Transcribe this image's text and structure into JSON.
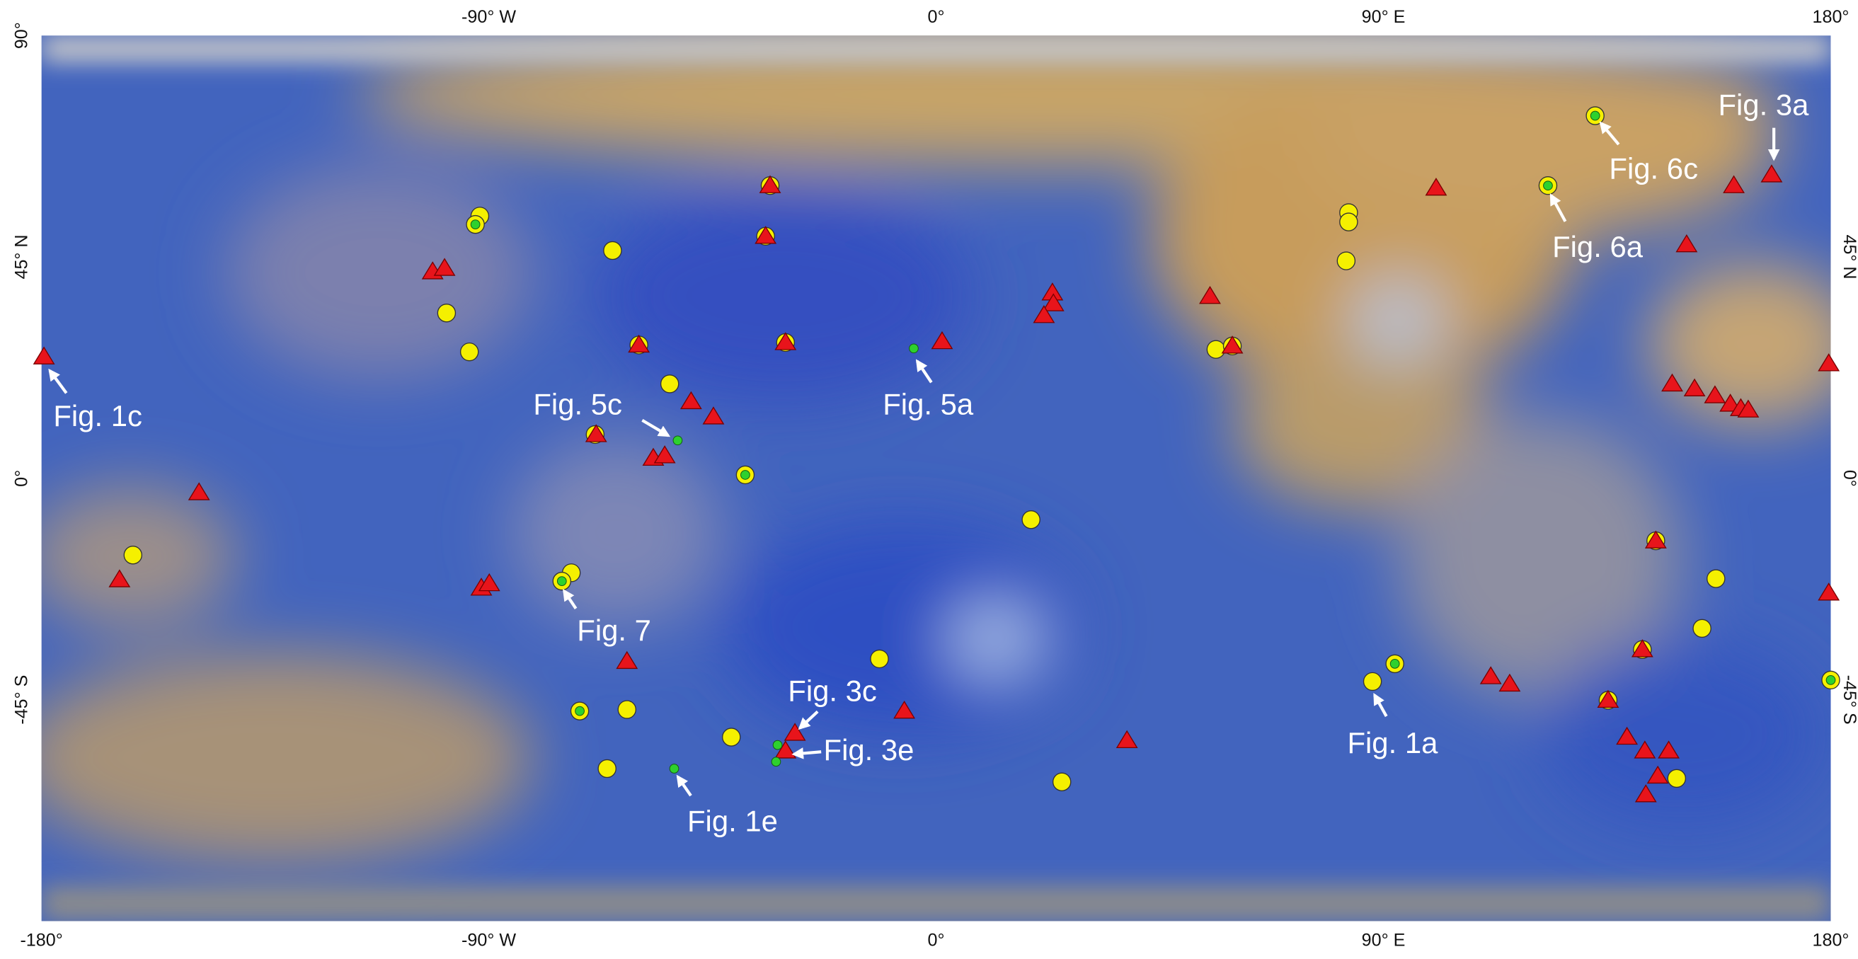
{
  "map": {
    "lonlim": [
      -180,
      180
    ],
    "latlim": [
      -90,
      90
    ],
    "top_ticks": [
      {
        "value": -90,
        "label": "-90° W"
      },
      {
        "value": 0,
        "label": "0°"
      },
      {
        "value": 90,
        "label": "90° E"
      },
      {
        "value": 180,
        "label": "180°"
      }
    ],
    "bottom_ticks": [
      {
        "value": -180,
        "label": "-180°"
      },
      {
        "value": -90,
        "label": "-90° W"
      },
      {
        "value": 0,
        "label": "0°"
      },
      {
        "value": 90,
        "label": "90° E"
      },
      {
        "value": 180,
        "label": "180°"
      }
    ],
    "left_ticks": [
      {
        "value": 90,
        "label": "90°"
      },
      {
        "value": 45,
        "label": "45° N"
      },
      {
        "value": 0,
        "label": "0°"
      },
      {
        "value": -45,
        "label": "-45° S"
      }
    ],
    "right_ticks": [
      {
        "value": 45,
        "label": "45° N"
      },
      {
        "value": 0,
        "label": "0°"
      },
      {
        "value": -45,
        "label": "-45° S"
      }
    ],
    "markers": {
      "yellow": {
        "color": "#f5f000",
        "points": [
          [
            -91.8,
            53.3
          ],
          [
            -92.7,
            51.6
          ],
          [
            -65.1,
            46.3
          ],
          [
            -98.5,
            33.6
          ],
          [
            -93.9,
            25.7
          ],
          [
            -53.6,
            19.2
          ],
          [
            -68.6,
            8.9
          ],
          [
            -38.4,
            0.7
          ],
          [
            -33.4,
            59.5
          ],
          [
            -34.3,
            49.2
          ],
          [
            -59.8,
            27.1
          ],
          [
            -30.3,
            27.6
          ],
          [
            -161.6,
            -15.6
          ],
          [
            -73.4,
            -19.2
          ],
          [
            -75.3,
            -20.9
          ],
          [
            -71.7,
            -47.3
          ],
          [
            -62.2,
            -47
          ],
          [
            -66.2,
            -59
          ],
          [
            -41.2,
            -52.6
          ],
          [
            -11.4,
            -36.7
          ],
          [
            19.1,
            -8.4
          ],
          [
            25.3,
            -61.7
          ],
          [
            56.3,
            26.2
          ],
          [
            59.6,
            26.9
          ],
          [
            83,
            54
          ],
          [
            83,
            52.1
          ],
          [
            82.5,
            44.2
          ],
          [
            87.8,
            -41.3
          ],
          [
            92.3,
            -37.7
          ],
          [
            123.1,
            59.5
          ],
          [
            132.6,
            73.7
          ],
          [
            144.8,
            -12.7
          ],
          [
            156.9,
            -20.4
          ],
          [
            154.1,
            -30.5
          ],
          [
            142.1,
            -34.8
          ],
          [
            135.2,
            -45.1
          ],
          [
            149,
            -61
          ],
          [
            180,
            -41
          ]
        ]
      },
      "red": {
        "color": "#e8141b",
        "points": [
          [
            -179.5,
            24.7
          ],
          [
            -148.3,
            -2.9
          ],
          [
            -164.3,
            -20.6
          ],
          [
            -101.3,
            42
          ],
          [
            -98.9,
            42.7
          ],
          [
            -91.5,
            -22.3
          ],
          [
            -89.9,
            -21.4
          ],
          [
            -68.4,
            8.9
          ],
          [
            -59.8,
            27.1
          ],
          [
            -56.9,
            4.1
          ],
          [
            -54.6,
            4.6
          ],
          [
            -49.3,
            15.6
          ],
          [
            -44.8,
            12.5
          ],
          [
            -33.4,
            59.5
          ],
          [
            -34.3,
            49.2
          ],
          [
            -30.3,
            27.6
          ],
          [
            -62.2,
            -37.2
          ],
          [
            -28.4,
            -51.8
          ],
          [
            -30.3,
            -55.4
          ],
          [
            -6.4,
            -47.3
          ],
          [
            1.2,
            27.8
          ],
          [
            23.4,
            37.7
          ],
          [
            23.6,
            35.5
          ],
          [
            21.7,
            33.1
          ],
          [
            55.1,
            37
          ],
          [
            59.6,
            26.9
          ],
          [
            38.4,
            -53.3
          ],
          [
            100.6,
            59
          ],
          [
            111.6,
            -40.3
          ],
          [
            115.4,
            -41.8
          ],
          [
            135.2,
            -45.1
          ],
          [
            139,
            -52.6
          ],
          [
            142.6,
            -55.4
          ],
          [
            147.4,
            -55.4
          ],
          [
            145.2,
            -60.5
          ],
          [
            142.8,
            -64.3
          ],
          [
            142.1,
            -34.8
          ],
          [
            144.8,
            -12.7
          ],
          [
            148.1,
            19.2
          ],
          [
            152.6,
            18.2
          ],
          [
            156.7,
            16.8
          ],
          [
            159.8,
            15.1
          ],
          [
            161.9,
            14.2
          ],
          [
            163.4,
            13.9
          ],
          [
            151,
            47.5
          ],
          [
            160.5,
            59.5
          ],
          [
            168.1,
            61.7
          ],
          [
            179.6,
            23.3
          ],
          [
            179.6,
            -23.3
          ]
        ]
      },
      "green": {
        "color": "#2ed12e",
        "points": [
          [
            -92.7,
            51.6
          ],
          [
            -38.4,
            0.7
          ],
          [
            -75.3,
            -20.9
          ],
          [
            -71.7,
            -47.3
          ],
          [
            92.3,
            -37.7
          ],
          [
            123.1,
            59.5
          ],
          [
            132.6,
            73.7
          ],
          [
            180,
            -41
          ],
          [
            -4.5,
            26.4
          ],
          [
            -52,
            7.7
          ],
          [
            -52.7,
            -59
          ],
          [
            -31.9,
            -54.2
          ],
          [
            -32.2,
            -57.6
          ]
        ]
      }
    },
    "labels": [
      "Fig. 1c",
      "Fig. 5c",
      "Fig. 5a",
      "Fig. 7",
      "Fig. 3c",
      "Fig. 3e",
      "Fig. 1e",
      "Fig. 1a",
      "Fig. 6c",
      "Fig. 6a",
      "Fig. 3a"
    ]
  }
}
